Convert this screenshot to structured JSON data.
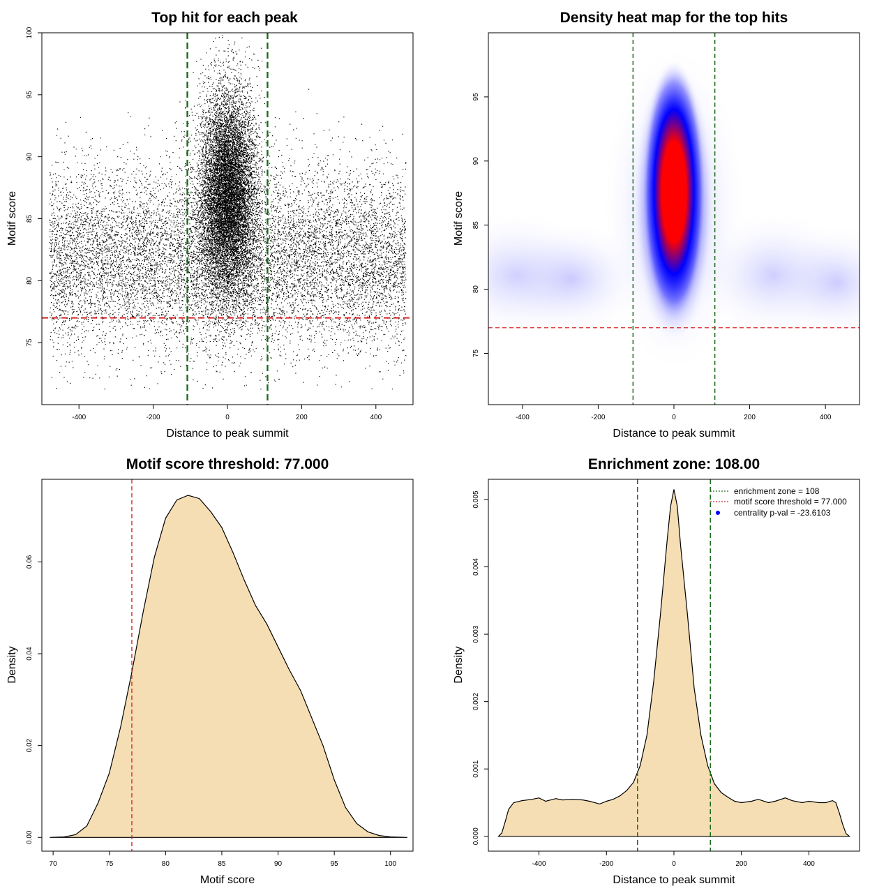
{
  "chart_data": [
    {
      "type": "scatter",
      "title": "Top hit for each peak",
      "xlabel": "Distance to peak summit",
      "ylabel": "Motif score",
      "xlim": [
        -500,
        500
      ],
      "ylim": [
        70,
        100
      ],
      "xticks": [
        -400,
        -200,
        0,
        200,
        400
      ],
      "yticks": [
        75,
        80,
        85,
        90,
        95,
        100
      ],
      "xtick_labels": [
        "-400",
        "-200",
        "0",
        "200",
        "400"
      ],
      "ytick_labels": [
        "75",
        "80",
        "85",
        "90",
        "95",
        "100"
      ],
      "vlines": [
        -108,
        108
      ],
      "hline": 77,
      "line_colors": {
        "vline": "#1a6b1a",
        "hline": "#d62728"
      },
      "point_color": "#000000",
      "point_count": 22000,
      "background_points": {
        "x_range": [
          -480,
          480
        ],
        "y_mean": 81.5,
        "y_sd": 3.6
      },
      "central_cluster": {
        "x_mean": 0,
        "x_sd": 38,
        "y_mean": 87,
        "y_sd": 4.2
      }
    },
    {
      "type": "heatmap",
      "title": "Density heat map for the top hits",
      "xlabel": "Distance to peak summit",
      "ylabel": "Motif score",
      "xlim": [
        -490,
        490
      ],
      "ylim": [
        71,
        100
      ],
      "xticks": [
        -400,
        -200,
        0,
        200,
        400
      ],
      "yticks": [
        75,
        80,
        85,
        90,
        95
      ],
      "xtick_labels": [
        "-400",
        "-200",
        "0",
        "200",
        "400"
      ],
      "ytick_labels": [
        "75",
        "80",
        "85",
        "90",
        "95"
      ],
      "vlines": [
        -108,
        108
      ],
      "hline": 77,
      "line_colors": {
        "vline": "#1a6b1a",
        "hline": "#d62728"
      },
      "colors": {
        "low": "#ffffff",
        "mid": "#0000ff",
        "high": "#ff0000"
      },
      "hotspot": {
        "x": 0,
        "y": 88
      }
    },
    {
      "type": "area",
      "title": "Motif score threshold: 77.000",
      "xlabel": "Motif score",
      "ylabel": "Density",
      "xlim": [
        69,
        102
      ],
      "ylim": [
        -0.003,
        0.078
      ],
      "xticks": [
        70,
        75,
        80,
        85,
        90,
        95,
        100
      ],
      "yticks": [
        0,
        0.02,
        0.04,
        0.06
      ],
      "xtick_labels": [
        "70",
        "75",
        "80",
        "85",
        "90",
        "95",
        "100"
      ],
      "ytick_labels": [
        "0.00",
        "0.02",
        "0.04",
        "0.06"
      ],
      "vline": 77,
      "vline_color": "#d62728",
      "fill": "#f5deb3",
      "x": [
        69.7,
        71.0,
        72.0,
        73.0,
        74.0,
        75.0,
        76.0,
        77.0,
        78.0,
        79.0,
        80.0,
        81.0,
        82.0,
        83.0,
        84.0,
        85.0,
        86.0,
        87.0,
        88.0,
        89.0,
        90.0,
        91.0,
        92.0,
        93.0,
        94.0,
        95.0,
        96.0,
        97.0,
        98.0,
        99.0,
        100.0,
        101.5
      ],
      "values": [
        0.0,
        0.0001,
        0.0006,
        0.0025,
        0.0075,
        0.014,
        0.024,
        0.036,
        0.049,
        0.061,
        0.0695,
        0.0735,
        0.0745,
        0.0738,
        0.071,
        0.0675,
        0.062,
        0.056,
        0.0505,
        0.0465,
        0.0415,
        0.0365,
        0.032,
        0.026,
        0.02,
        0.0125,
        0.0065,
        0.003,
        0.0012,
        0.0004,
        0.0001,
        0.0
      ]
    },
    {
      "type": "area",
      "title": "Enrichment zone: 108.00",
      "xlabel": "Distance to peak summit",
      "ylabel": "Density",
      "xlim": [
        -550,
        550
      ],
      "ylim": [
        -0.00022,
        0.0053
      ],
      "xticks": [
        -400,
        -200,
        0,
        200,
        400
      ],
      "yticks": [
        0,
        0.001,
        0.002,
        0.003,
        0.004,
        0.005
      ],
      "xtick_labels": [
        "-400",
        "-200",
        "0",
        "200",
        "400"
      ],
      "ytick_labels": [
        "0.000",
        "0.001",
        "0.002",
        "0.003",
        "0.004",
        "0.005"
      ],
      "vlines": [
        -108,
        108
      ],
      "vline_color": "#1a6b1a",
      "fill": "#f5deb3",
      "x": [
        -520,
        -510,
        -500,
        -490,
        -475,
        -450,
        -420,
        -400,
        -380,
        -350,
        -330,
        -300,
        -270,
        -250,
        -220,
        -200,
        -180,
        -160,
        -140,
        -120,
        -100,
        -80,
        -60,
        -40,
        -20,
        -10,
        0,
        10,
        20,
        40,
        60,
        80,
        100,
        120,
        140,
        160,
        180,
        200,
        230,
        250,
        280,
        300,
        330,
        350,
        380,
        400,
        430,
        450,
        470,
        480,
        490,
        500,
        510,
        520
      ],
      "values": [
        0.0,
        5e-05,
        0.00022,
        0.0004,
        0.0005,
        0.00053,
        0.00055,
        0.00057,
        0.00052,
        0.00056,
        0.00054,
        0.00055,
        0.00054,
        0.00052,
        0.00048,
        0.00052,
        0.00055,
        0.0006,
        0.00068,
        0.0008,
        0.00105,
        0.0015,
        0.0023,
        0.0033,
        0.0044,
        0.0049,
        0.00515,
        0.0049,
        0.0043,
        0.0033,
        0.0022,
        0.0015,
        0.00105,
        0.00078,
        0.00065,
        0.00058,
        0.00052,
        0.0005,
        0.00052,
        0.00055,
        0.0005,
        0.00052,
        0.00057,
        0.00053,
        0.0005,
        0.00052,
        0.0005,
        0.0005,
        0.00053,
        0.0005,
        0.00035,
        0.00018,
        4e-05,
        0.0
      ],
      "legend": [
        {
          "label": "enrichment zone = 108",
          "style": "dotted-line",
          "color": "#1a6b1a"
        },
        {
          "label": "motif score threshold = 77.000",
          "style": "dotted-line",
          "color": "#d62728"
        },
        {
          "label": "centrality p-val = -23.6103",
          "style": "point",
          "color": "#0000ff"
        }
      ],
      "legend_position": "top-right"
    }
  ]
}
